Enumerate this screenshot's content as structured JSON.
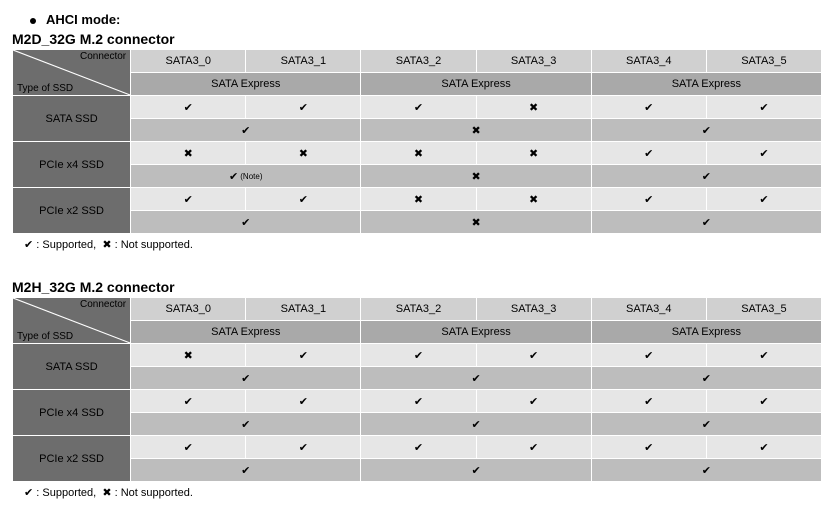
{
  "mode_title": "AHCI mode:",
  "legend": {
    "supported": ": Supported,",
    "not_supported": ": Not supported."
  },
  "symbols": {
    "check": "✔",
    "cross": "✖"
  },
  "colors": {
    "dark_header": "#6d6d6d",
    "mid_header": "#a9a9a9",
    "light_header": "#d0d0d0",
    "cell_light": "#e6e6e6",
    "cell_mid": "#bdbdbd",
    "border": "#ffffff"
  },
  "diag_labels": {
    "top": "Connector",
    "bottom": "Type of SSD"
  },
  "columns": [
    "SATA3_0",
    "SATA3_1",
    "SATA3_2",
    "SATA3_3",
    "SATA3_4",
    "SATA3_5"
  ],
  "sata_express_groups": [
    {
      "label": "SATA Express",
      "span": 2
    },
    {
      "label": "SATA Express",
      "span": 2
    },
    {
      "label": "SATA Express",
      "span": 2
    }
  ],
  "tables": [
    {
      "title": "M2D_32G M.2 connector",
      "rows": [
        {
          "label": "SATA SSD",
          "primary": [
            "check",
            "check",
            "check",
            "cross",
            "check",
            "check"
          ],
          "secondary": [
            {
              "span": 2,
              "sym": "check"
            },
            {
              "span": 2,
              "sym": "cross"
            },
            {
              "span": 2,
              "sym": "check"
            }
          ]
        },
        {
          "label": "PCIe x4 SSD",
          "primary": [
            "cross",
            "cross",
            "cross",
            "cross",
            "check",
            "check"
          ],
          "primary_note_col": -1,
          "secondary": [
            {
              "span": 2,
              "sym": "check",
              "note": "(Note)"
            },
            {
              "span": 2,
              "sym": "cross"
            },
            {
              "span": 2,
              "sym": "check"
            }
          ]
        },
        {
          "label": "PCIe x2 SSD",
          "primary": [
            "check",
            "check",
            "cross",
            "cross",
            "check",
            "check"
          ],
          "secondary": [
            {
              "span": 2,
              "sym": "check"
            },
            {
              "span": 2,
              "sym": "cross"
            },
            {
              "span": 2,
              "sym": "check"
            }
          ]
        }
      ]
    },
    {
      "title": "M2H_32G M.2 connector",
      "rows": [
        {
          "label": "SATA SSD",
          "primary": [
            "cross",
            "check",
            "check",
            "check",
            "check",
            "check"
          ],
          "secondary": [
            {
              "span": 2,
              "sym": "check"
            },
            {
              "span": 2,
              "sym": "check"
            },
            {
              "span": 2,
              "sym": "check"
            }
          ]
        },
        {
          "label": "PCIe x4 SSD",
          "primary": [
            "check",
            "check",
            "check",
            "check",
            "check",
            "check"
          ],
          "secondary": [
            {
              "span": 2,
              "sym": "check"
            },
            {
              "span": 2,
              "sym": "check"
            },
            {
              "span": 2,
              "sym": "check"
            }
          ]
        },
        {
          "label": "PCIe x2 SSD",
          "primary": [
            "check",
            "check",
            "check",
            "check",
            "check",
            "check"
          ],
          "secondary": [
            {
              "span": 2,
              "sym": "check"
            },
            {
              "span": 2,
              "sym": "check"
            },
            {
              "span": 2,
              "sym": "check"
            }
          ]
        }
      ]
    }
  ]
}
